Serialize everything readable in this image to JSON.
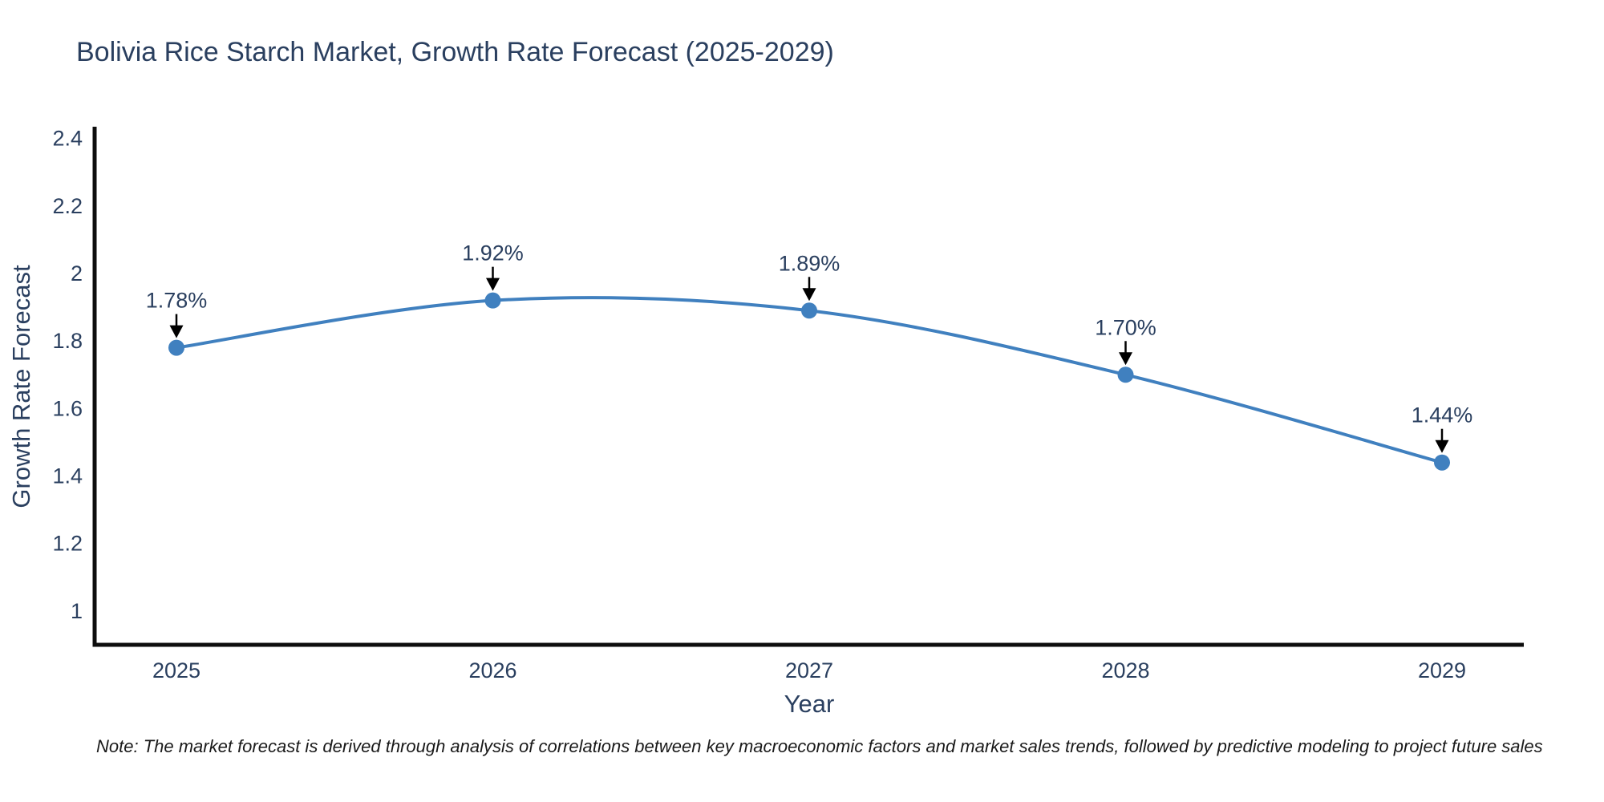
{
  "page": {
    "background": "#ffffff"
  },
  "chart_data": {
    "type": "line",
    "title": "Bolivia Rice Starch Market, Growth Rate Forecast (2025-2029)",
    "xlabel": "Year",
    "ylabel": "Growth Rate Forecast",
    "categories": [
      "2025",
      "2026",
      "2027",
      "2028",
      "2029"
    ],
    "series": [
      {
        "name": "Growth Rate Forecast",
        "values": [
          1.78,
          1.92,
          1.89,
          1.7,
          1.44
        ]
      }
    ],
    "point_labels": [
      "1.78%",
      "1.92%",
      "1.89%",
      "1.70%",
      "1.44%"
    ],
    "yticks": [
      1,
      1.2,
      1.4,
      1.6,
      1.8,
      2,
      2.2,
      2.4
    ],
    "ytick_labels": [
      "1",
      "1.2",
      "1.4",
      "1.6",
      "1.8",
      "2",
      "2.2",
      "2.4"
    ],
    "ylim": [
      0.9,
      2.43
    ],
    "line_shape": "spline",
    "grid": false,
    "legend": "none",
    "annotation_arrow_direction": "down",
    "colors": {
      "line": "#4080bf",
      "marker": "#4080bf",
      "axis_line": "#0d0d0d",
      "text": "#2a3f5f",
      "arrow": "#000000",
      "note": "#1a1a1a"
    }
  },
  "footnote": "Note: The market forecast is derived through analysis of correlations between key macroeconomic factors and market sales trends, followed by predictive modeling to project future sales"
}
